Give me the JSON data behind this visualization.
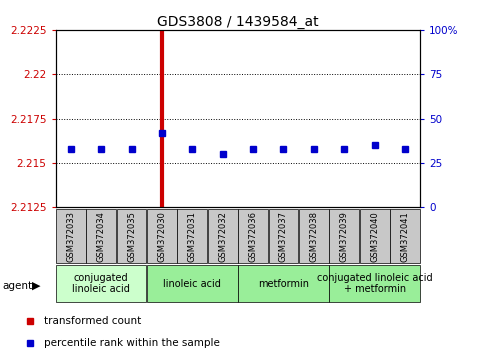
{
  "title": "GDS3808 / 1439584_at",
  "samples": [
    "GSM372033",
    "GSM372034",
    "GSM372035",
    "GSM372030",
    "GSM372031",
    "GSM372032",
    "GSM372036",
    "GSM372037",
    "GSM372038",
    "GSM372039",
    "GSM372040",
    "GSM372041"
  ],
  "transformed_count": [
    2.2125,
    2.2125,
    2.2125,
    2.2225,
    2.2125,
    2.2125,
    2.2125,
    2.2125,
    2.2125,
    2.2125,
    2.2125,
    2.2125
  ],
  "percentile_rank": [
    33,
    33,
    33,
    42,
    33,
    30,
    33,
    33,
    33,
    33,
    35,
    33
  ],
  "ylim_left": [
    2.2125,
    2.2225
  ],
  "yticks_left": [
    2.2125,
    2.215,
    2.2175,
    2.22,
    2.2225
  ],
  "ylim_right": [
    0,
    100
  ],
  "yticks_right": [
    0,
    25,
    50,
    75,
    100
  ],
  "agent_groups": [
    {
      "label": "conjugated\nlinoleic acid",
      "start": 0,
      "end": 3,
      "color": "#ccffcc"
    },
    {
      "label": "linoleic acid",
      "start": 3,
      "end": 6,
      "color": "#99ee99"
    },
    {
      "label": "metformin",
      "start": 6,
      "end": 9,
      "color": "#99ee99"
    },
    {
      "label": "conjugated linoleic acid\n+ metformin",
      "start": 9,
      "end": 12,
      "color": "#99ee99"
    }
  ],
  "bar_color": "#cc0000",
  "dot_color": "#0000cc",
  "left_tick_color": "#cc0000",
  "right_tick_color": "#0000cc",
  "grid_color": "#000000",
  "sample_box_color": "#c8c8c8",
  "title_fontsize": 10,
  "tick_fontsize": 7.5,
  "sample_fontsize": 6,
  "agent_fontsize": 7,
  "legend_fontsize": 7.5
}
